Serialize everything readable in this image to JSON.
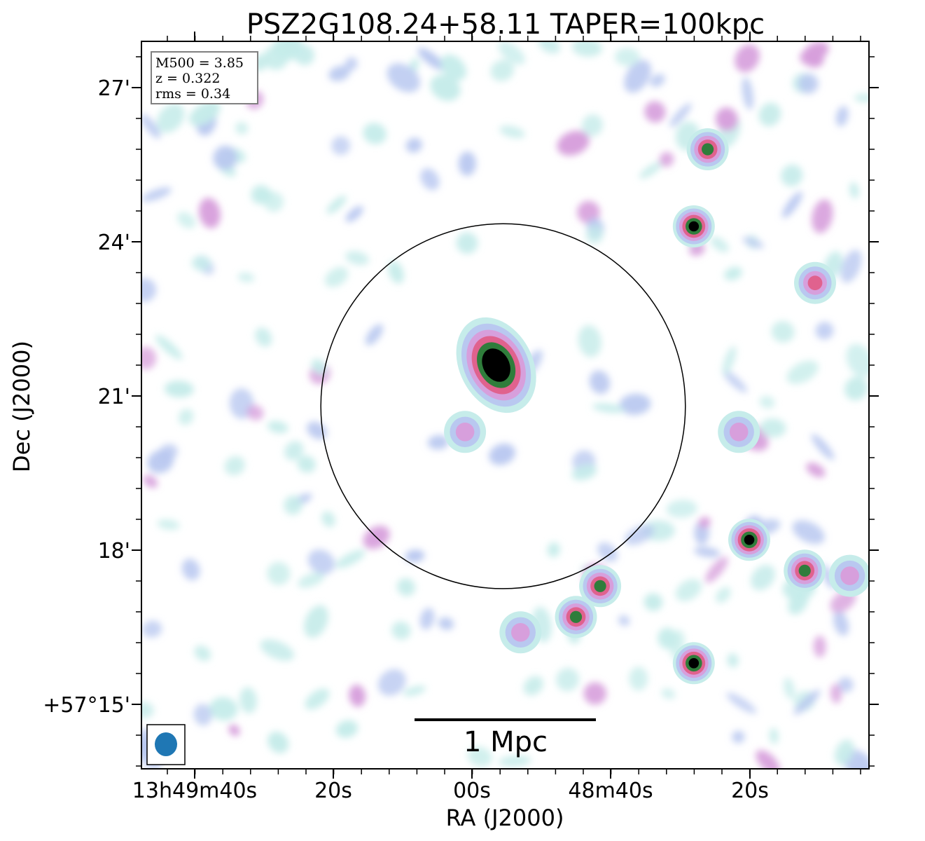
{
  "chart_data": {
    "type": "heatmap",
    "title": "PSZ2G108.24+58.11 TAPER=100kpc",
    "xlabel": "RA (J2000)",
    "ylabel": "Dec (J2000)",
    "x_ticks": [
      "13h49m40s",
      "20s",
      "00s",
      "48m40s",
      "20s"
    ],
    "y_ticks": [
      "27'",
      "24'",
      "21'",
      "18'",
      "+57°15'"
    ],
    "info_box": [
      "M500 = 3.85",
      "z = 0.322",
      "rms = 0.34"
    ],
    "scale_bar_label": "1 Mpc",
    "colormap": "cubehelix-like (white → light blue → pink → green → black)",
    "colormap_colors": [
      "#ffffff",
      "#c6ecea",
      "#b9c8f0",
      "#d79fdc",
      "#e0628e",
      "#2f7d3b",
      "#000000"
    ],
    "sources": [
      {
        "name": "central-source",
        "ra_sec": 56.5,
        "dec_arcmin": 21.6,
        "peak": 1.0
      },
      {
        "name": "source-ne-1",
        "ra_sec": 26.0,
        "dec_arcmin": 25.8,
        "peak": 0.75
      },
      {
        "name": "source-e-1",
        "ra_sec": 28.0,
        "dec_arcmin": 24.3,
        "peak": 0.95
      },
      {
        "name": "source-e-2",
        "ra_sec": 10.5,
        "dec_arcmin": 23.2,
        "peak": 0.6
      },
      {
        "name": "source-se-1",
        "ra_sec": 20.0,
        "dec_arcmin": 18.2,
        "peak": 0.95
      },
      {
        "name": "source-se-2",
        "ra_sec": 12.0,
        "dec_arcmin": 17.6,
        "peak": 0.9
      },
      {
        "name": "source-s-1",
        "ra_sec": 28.0,
        "dec_arcmin": 15.8,
        "peak": 0.95
      },
      {
        "name": "source-s-2",
        "ra_sec": 45.0,
        "dec_arcmin": 16.7,
        "peak": 0.75
      },
      {
        "name": "source-w-1",
        "ra_sec": 41.5,
        "dec_arcmin": 17.3,
        "peak": 0.75
      },
      {
        "name": "source-w-2",
        "ra_sec": 21.5,
        "dec_arcmin": 20.3,
        "peak": 0.55
      },
      {
        "name": "source-c-1",
        "ra_sec": 61.0,
        "dec_arcmin": 20.3,
        "peak": 0.55
      },
      {
        "name": "source-s-3",
        "ra_sec": 5.5,
        "dec_arcmin": 17.5,
        "peak": 0.5
      },
      {
        "name": "source-s-4",
        "ra_sec": 53.0,
        "dec_arcmin": 16.4,
        "peak": 0.55
      }
    ],
    "aperture_circle": {
      "ra_sec": 55.5,
      "dec_arcmin": 20.8,
      "radius_arcmin": 3.55
    },
    "beam": {
      "color": "#1f77b4"
    }
  }
}
